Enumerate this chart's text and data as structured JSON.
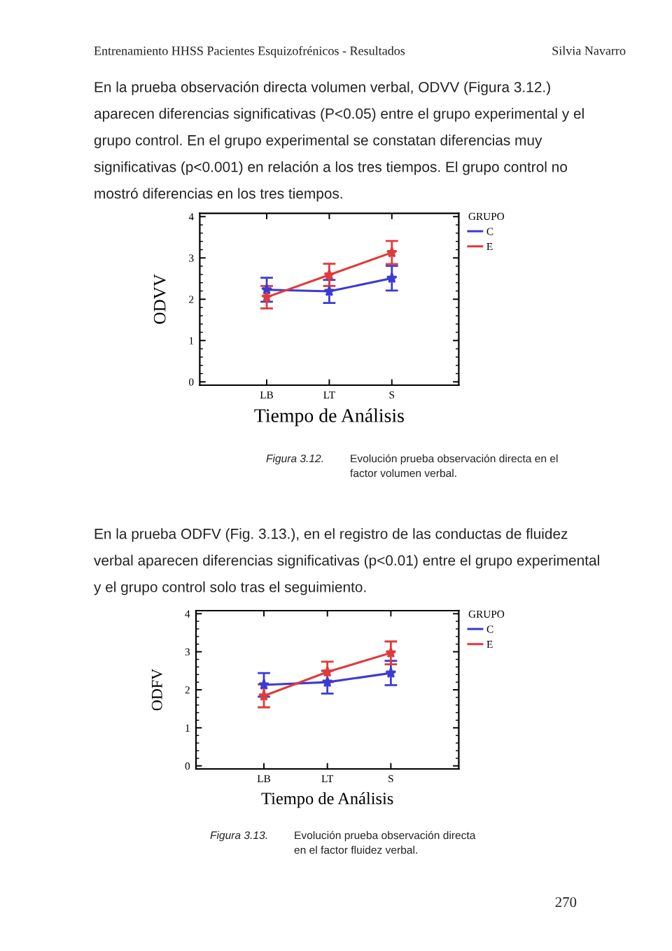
{
  "chart_data": [
    {
      "type": "line",
      "ylabel": "ODVV",
      "xlabel": "Tiempo de Análisis",
      "legend_title": "GRUPO",
      "legend": "top right",
      "marker": "star",
      "line_style": "solid",
      "categories": [
        "LB",
        "LT",
        "S"
      ],
      "ylim": [
        -0.08,
        4.08
      ],
      "yticks": [
        0,
        1,
        2,
        3,
        4
      ],
      "series": [
        {
          "name": "C",
          "color": "#3b3bd4",
          "values": [
            2.23,
            2.19,
            2.51
          ],
          "errors": [
            0.29,
            0.28,
            0.3
          ]
        },
        {
          "name": "E",
          "color": "#e03a3a",
          "values": [
            2.05,
            2.59,
            3.13
          ],
          "errors": [
            0.27,
            0.27,
            0.28
          ]
        }
      ],
      "annotations": [
        "Entrenamiento HHSS Pacientes Esquizofrénicos - Resultados",
        "Silvia Navarro",
        "En la prueba observación directa volumen verbal, ODVV (Figura 3.12.)\naparecen diferencias significativas (P<0.05) entre el grupo experimental y el\ngrupo control. En el grupo experimental se constatan diferencias muy\nsignificativas (p<0.001) en relación a los tres tiempos. El grupo control no\nmostró diferencias en los tres tiempos.",
        "Figura 3.12.",
        "Evolución prueba observación directa en el\nfactor volumen verbal."
      ]
    },
    {
      "type": "line",
      "ylabel": "ODFV",
      "xlabel": "Tiempo de Análisis",
      "legend_title": "GRUPO",
      "legend": "top right",
      "marker": "star",
      "line_style": "solid",
      "categories": [
        "LB",
        "LT",
        "S"
      ],
      "ylim": [
        -0.08,
        4.08
      ],
      "yticks": [
        0,
        1,
        2,
        3,
        4
      ],
      "series": [
        {
          "name": "C",
          "color": "#3b3bd4",
          "values": [
            2.13,
            2.2,
            2.44
          ],
          "errors": [
            0.31,
            0.3,
            0.32
          ]
        },
        {
          "name": "E",
          "color": "#e03a3a",
          "values": [
            1.84,
            2.47,
            2.97
          ],
          "errors": [
            0.3,
            0.27,
            0.3
          ]
        }
      ],
      "annotations": [
        "En la prueba ODFV (Fig. 3.13.), en el registro de las conductas de fluidez\nverbal aparecen diferencias significativas (p<0.01) entre el grupo experimental\ny el grupo control solo tras el seguimiento.",
        "Figura 3.13.",
        "Evolución prueba observación directa\nen el factor fluidez verbal.",
        "270"
      ]
    }
  ]
}
